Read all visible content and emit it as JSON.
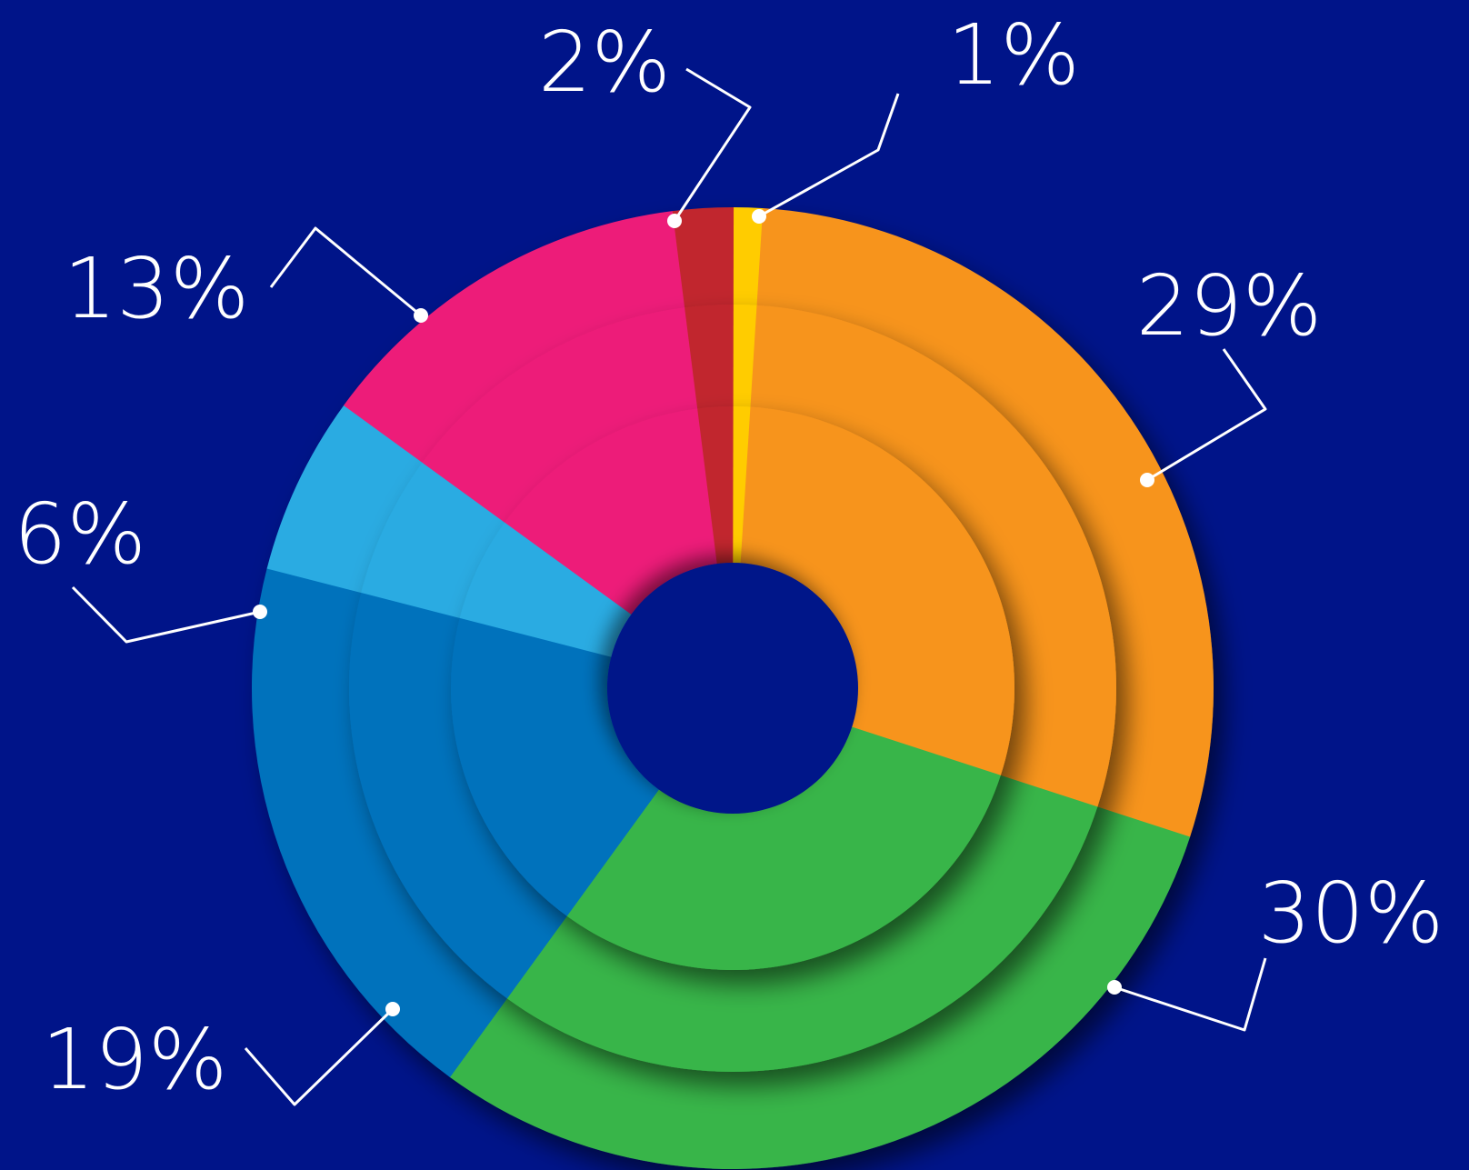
{
  "chart_data": {
    "type": "pie",
    "style": "donut",
    "background": "#001489",
    "slices": [
      {
        "value": 1,
        "label": "1%",
        "color": "#FFCC00"
      },
      {
        "value": 29,
        "label": "29%",
        "color": "#F7941E"
      },
      {
        "value": 30,
        "label": "30%",
        "color": "#39B54A"
      },
      {
        "value": 19,
        "label": "19%",
        "color": "#0072BC"
      },
      {
        "value": 6,
        "label": "6%",
        "color": "#29ABE2"
      },
      {
        "value": 13,
        "label": "13%",
        "color": "#ED1E79"
      },
      {
        "value": 2,
        "label": "2%",
        "color": "#C1272D"
      }
    ],
    "legend": "none",
    "data_labels": "outside with leader lines"
  }
}
